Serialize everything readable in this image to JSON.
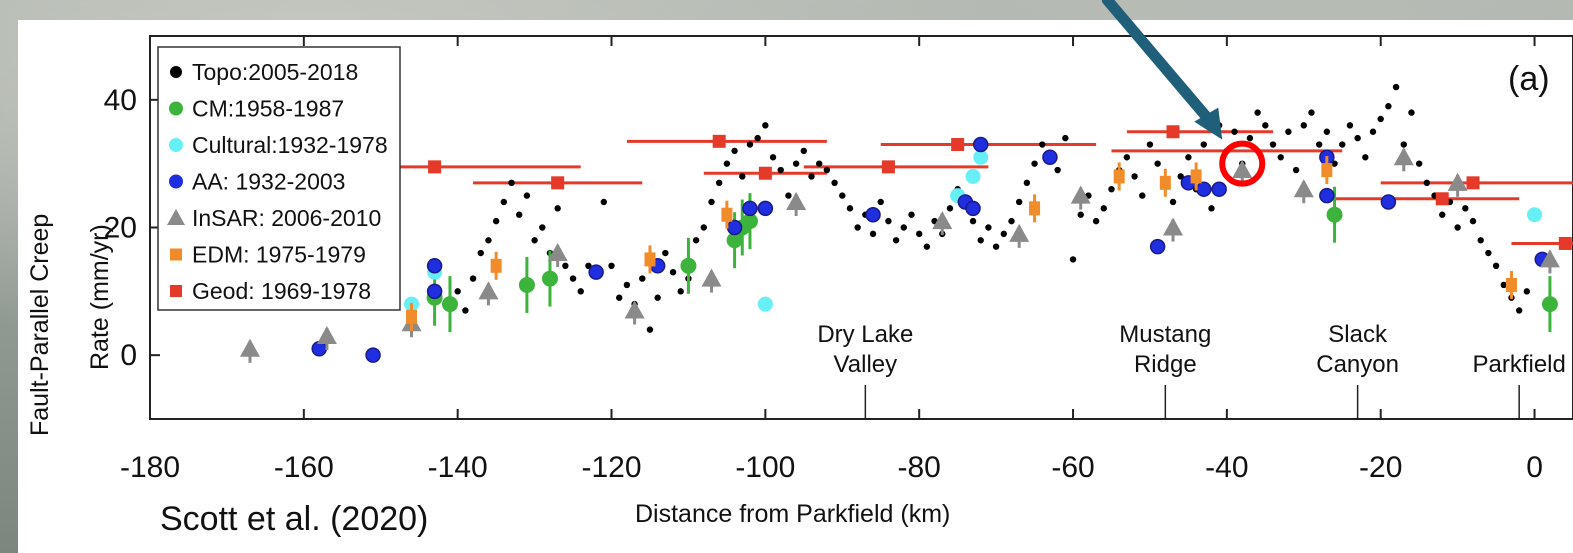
{
  "chart_data": {
    "type": "scatter",
    "panel_label": "(a)",
    "xlabel": "Distance from Parkfield (km)",
    "ylabel_line1": "Fault-Parallel Creep",
    "ylabel_line2": "Rate (mm/yr)",
    "xlim": [
      -180,
      5
    ],
    "ylim": [
      -10,
      50
    ],
    "xticks": [
      -180,
      -160,
      -140,
      -120,
      -100,
      -80,
      -60,
      -40,
      -20,
      0
    ],
    "yticks": [
      0,
      20,
      40
    ],
    "citation": "Scott et al. (2020)",
    "place_labels": [
      {
        "line1": "Dry Lake",
        "line2": "Valley",
        "x": -87
      },
      {
        "line1": "Mustang",
        "line2": "Ridge",
        "x": -48
      },
      {
        "line1": "Slack",
        "line2": "Canyon",
        "x": -23
      },
      {
        "line1": "",
        "line2": "Parkfield",
        "x": -2
      }
    ],
    "highlight": {
      "x": -38,
      "y": 30,
      "color": "#ff0000"
    },
    "arrow_color": "#1f5f7a",
    "legend": [
      {
        "label": "Topo:2005-2018",
        "marker": "dot",
        "color": "#000000"
      },
      {
        "label": "CM:1958-1987",
        "marker": "circle",
        "color": "#3cb43c"
      },
      {
        "label": "Cultural:1932-1978",
        "marker": "circle",
        "color": "#66f0f5"
      },
      {
        "label": "AA: 1932-2003",
        "marker": "circle",
        "color": "#1f2fe0"
      },
      {
        "label": "InSAR: 2006-2010",
        "marker": "triangle",
        "color": "#8a8a8a"
      },
      {
        "label": "EDM: 1975-1979",
        "marker": "square",
        "color": "#f08c2a"
      },
      {
        "label": "Geod: 1969-1978",
        "marker": "square",
        "color": "#e53a2a"
      }
    ],
    "series": [
      {
        "name": "Topo:2005-2018",
        "color": "#000000",
        "points": [
          [
            -141,
            8
          ],
          [
            -140,
            10
          ],
          [
            -139,
            7
          ],
          [
            -138,
            12
          ],
          [
            -137,
            16
          ],
          [
            -136,
            18
          ],
          [
            -135,
            21
          ],
          [
            -134,
            24
          ],
          [
            -133,
            27
          ],
          [
            -132,
            22
          ],
          [
            -131,
            25
          ],
          [
            -130,
            18
          ],
          [
            -129,
            20
          ],
          [
            -128,
            16
          ],
          [
            -127,
            23
          ],
          [
            -126,
            14
          ],
          [
            -125,
            12
          ],
          [
            -124,
            10
          ],
          [
            -123,
            14
          ],
          [
            -122,
            13
          ],
          [
            -121,
            24
          ],
          [
            -120,
            14
          ],
          [
            -119,
            9
          ],
          [
            -118,
            11
          ],
          [
            -117,
            8
          ],
          [
            -116,
            12
          ],
          [
            -115,
            4
          ],
          [
            -114,
            9
          ],
          [
            -113,
            16
          ],
          [
            -112,
            13
          ],
          [
            -111,
            10
          ],
          [
            -110,
            12
          ],
          [
            -109,
            18
          ],
          [
            -108,
            20
          ],
          [
            -107,
            24
          ],
          [
            -106,
            27
          ],
          [
            -105,
            30
          ],
          [
            -104,
            32
          ],
          [
            -103,
            28
          ],
          [
            -102,
            33
          ],
          [
            -101,
            34
          ],
          [
            -100,
            36
          ],
          [
            -99,
            31
          ],
          [
            -98,
            29
          ],
          [
            -97,
            25
          ],
          [
            -96,
            30
          ],
          [
            -95,
            32
          ],
          [
            -94,
            28
          ],
          [
            -93,
            30
          ],
          [
            -92,
            29
          ],
          [
            -91,
            27
          ],
          [
            -90,
            25
          ],
          [
            -89,
            23
          ],
          [
            -88,
            20
          ],
          [
            -87,
            22
          ],
          [
            -86,
            19
          ],
          [
            -85,
            24
          ],
          [
            -84,
            21
          ],
          [
            -83,
            18
          ],
          [
            -82,
            20
          ],
          [
            -81,
            22
          ],
          [
            -80,
            19
          ],
          [
            -79,
            17
          ],
          [
            -78,
            21
          ],
          [
            -77,
            19
          ],
          [
            -76,
            23
          ],
          [
            -75,
            26
          ],
          [
            -74,
            24
          ],
          [
            -73,
            21
          ],
          [
            -72,
            18
          ],
          [
            -71,
            20
          ],
          [
            -70,
            17
          ],
          [
            -69,
            19
          ],
          [
            -68,
            21
          ],
          [
            -67,
            24
          ],
          [
            -66,
            27
          ],
          [
            -65,
            30
          ],
          [
            -64,
            33
          ],
          [
            -63,
            31
          ],
          [
            -62,
            29
          ],
          [
            -61,
            34
          ],
          [
            -60,
            15
          ],
          [
            -59,
            22
          ],
          [
            -58,
            25
          ],
          [
            -57,
            21
          ],
          [
            -56,
            23
          ],
          [
            -55,
            26
          ],
          [
            -54,
            29
          ],
          [
            -53,
            31
          ],
          [
            -52,
            28
          ],
          [
            -51,
            25
          ],
          [
            -50,
            33
          ],
          [
            -49,
            30
          ],
          [
            -48,
            27
          ],
          [
            -47,
            24
          ],
          [
            -46,
            28
          ],
          [
            -45,
            31
          ],
          [
            -44,
            26
          ],
          [
            -43,
            33
          ],
          [
            -42,
            23
          ],
          [
            -41,
            36
          ],
          [
            -40,
            32
          ],
          [
            -39,
            35
          ],
          [
            -38,
            30
          ],
          [
            -37,
            34
          ],
          [
            -36,
            38
          ],
          [
            -35,
            36
          ],
          [
            -34,
            33
          ],
          [
            -33,
            31
          ],
          [
            -32,
            35
          ],
          [
            -31,
            29
          ],
          [
            -30,
            36
          ],
          [
            -29,
            38
          ],
          [
            -28,
            33
          ],
          [
            -27,
            35
          ],
          [
            -26,
            30
          ],
          [
            -25,
            33
          ],
          [
            -24,
            36
          ],
          [
            -23,
            34
          ],
          [
            -22,
            31
          ],
          [
            -21,
            35
          ],
          [
            -20,
            37
          ],
          [
            -19,
            39
          ],
          [
            -18,
            42
          ],
          [
            -17,
            33
          ],
          [
            -16,
            38
          ],
          [
            -15,
            30
          ],
          [
            -14,
            27
          ],
          [
            -13,
            25
          ],
          [
            -12,
            22
          ],
          [
            -11,
            24
          ],
          [
            -10,
            20
          ],
          [
            -9,
            23
          ],
          [
            -8,
            21
          ],
          [
            -7,
            18
          ],
          [
            -6,
            16
          ],
          [
            -5,
            14
          ],
          [
            -4,
            11
          ],
          [
            -3,
            9
          ],
          [
            -2,
            7
          ],
          [
            -1,
            10
          ]
        ]
      },
      {
        "name": "CM:1958-1987",
        "color": "#3cb43c",
        "points": [
          [
            -143,
            9
          ],
          [
            -141,
            8
          ],
          [
            -131,
            11
          ],
          [
            -128,
            12
          ],
          [
            -110,
            14
          ],
          [
            -104,
            18
          ],
          [
            -103,
            20
          ],
          [
            -102,
            21
          ],
          [
            -26,
            22
          ],
          [
            2,
            8
          ]
        ]
      },
      {
        "name": "Cultural:1932-1978",
        "color": "#66f0f5",
        "points": [
          [
            -146,
            8
          ],
          [
            -143,
            13
          ],
          [
            -100,
            8
          ],
          [
            -75,
            25
          ],
          [
            -73,
            28
          ],
          [
            -72,
            31
          ],
          [
            0,
            22
          ]
        ]
      },
      {
        "name": "AA: 1932-2003",
        "color": "#1f2fe0",
        "points": [
          [
            -158,
            1
          ],
          [
            -151,
            0
          ],
          [
            -143,
            14
          ],
          [
            -143,
            10
          ],
          [
            -122,
            13
          ],
          [
            -114,
            14
          ],
          [
            -104,
            20
          ],
          [
            -102,
            23
          ],
          [
            -100,
            23
          ],
          [
            -86,
            22
          ],
          [
            -74,
            24
          ],
          [
            -73,
            23
          ],
          [
            -72,
            33
          ],
          [
            -63,
            31
          ],
          [
            -49,
            17
          ],
          [
            -45,
            27
          ],
          [
            -43,
            26
          ],
          [
            -41,
            26
          ],
          [
            -27,
            31
          ],
          [
            -27,
            25
          ],
          [
            -19,
            24
          ],
          [
            1,
            15
          ]
        ]
      },
      {
        "name": "InSAR: 2006-2010",
        "color": "#8a8a8a",
        "points": [
          [
            -167,
            1
          ],
          [
            -157,
            3
          ],
          [
            -146,
            5
          ],
          [
            -136,
            10
          ],
          [
            -127,
            16
          ],
          [
            -117,
            7
          ],
          [
            -107,
            12
          ],
          [
            -96,
            24
          ],
          [
            -77,
            21
          ],
          [
            -67,
            19
          ],
          [
            -59,
            25
          ],
          [
            -47,
            20
          ],
          [
            -38,
            29
          ],
          [
            -30,
            26
          ],
          [
            -17,
            31
          ],
          [
            -10,
            27
          ],
          [
            2,
            15
          ]
        ]
      },
      {
        "name": "EDM: 1975-1979",
        "color": "#f08c2a",
        "points": [
          [
            -146,
            6
          ],
          [
            -135,
            14
          ],
          [
            -115,
            15
          ],
          [
            -105,
            22
          ],
          [
            -65,
            23
          ],
          [
            -54,
            28
          ],
          [
            -48,
            27
          ],
          [
            -44,
            28
          ],
          [
            -27,
            29
          ],
          [
            -3,
            11
          ]
        ]
      },
      {
        "name": "Geod: 1969-1978",
        "color": "#e53a2a",
        "points": [
          [
            -143,
            29.5
          ],
          [
            -127,
            27
          ],
          [
            -106,
            33.5
          ],
          [
            -100,
            28.5
          ],
          [
            -84,
            29.5
          ],
          [
            -75,
            33
          ],
          [
            -47,
            35
          ],
          [
            -12,
            24.5
          ],
          [
            -8,
            27
          ],
          [
            4,
            17.5
          ]
        ]
      }
    ],
    "geod_spans": [
      [
        -164,
        -124,
        29.5
      ],
      [
        -138,
        -116,
        27
      ],
      [
        -118,
        -92,
        33.5
      ],
      [
        -108,
        -92,
        28.5
      ],
      [
        -95,
        -71,
        29.5
      ],
      [
        -85,
        -57,
        33
      ],
      [
        -53,
        -34,
        35
      ],
      [
        -55,
        -25,
        32
      ],
      [
        -26,
        -2,
        24.5
      ],
      [
        -20,
        6,
        27
      ],
      [
        -3,
        6,
        17.5
      ]
    ]
  }
}
